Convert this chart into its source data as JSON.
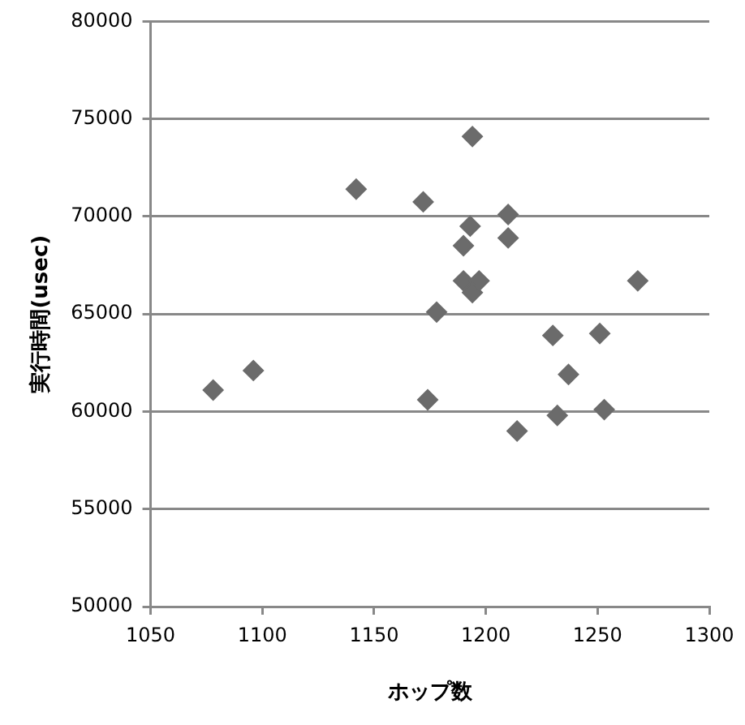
{
  "chart_data": {
    "type": "scatter",
    "xlabel": "ホップ数",
    "ylabel": "実行時間(usec)",
    "xlim": [
      1050,
      1300
    ],
    "xticks": [
      1050,
      1100,
      1150,
      1200,
      1250,
      1300
    ],
    "ylim": [
      50000,
      80000
    ],
    "yticks": [
      50000,
      55000,
      60000,
      65000,
      70000,
      75000,
      80000
    ],
    "grid": "y",
    "legend": false,
    "marker": "diamond",
    "series": [
      {
        "color": "#6b6b6b",
        "x": [
          1078,
          1096,
          1142,
          1172,
          1178,
          1174,
          1194,
          1193,
          1190,
          1190,
          1197,
          1194,
          1210,
          1210,
          1214,
          1230,
          1251,
          1237,
          1232,
          1253,
          1268
        ],
        "values": [
          61100,
          62100,
          71400,
          70750,
          65100,
          60600,
          74100,
          69500,
          68500,
          66700,
          66700,
          66100,
          70100,
          68900,
          59000,
          63900,
          64000,
          61900,
          59800,
          60100,
          66700
        ]
      }
    ]
  }
}
